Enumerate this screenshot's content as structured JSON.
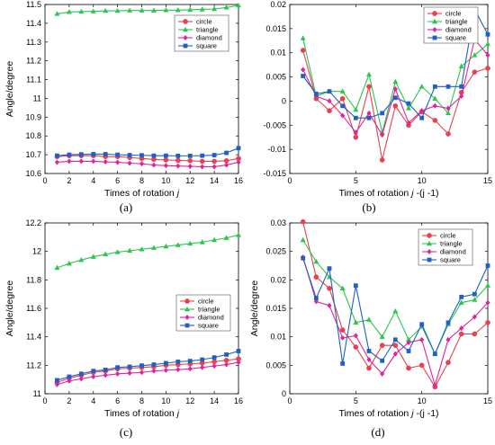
{
  "colors": {
    "circle": "#e8424e",
    "triangle": "#2bc64b",
    "diamond": "#e0249c",
    "square": "#1f5fc6"
  },
  "chart_data": [
    {
      "type": "line",
      "panel_label": "(a)",
      "xlabel_main": "Times of rotation ",
      "xlabel_var": "j",
      "xlabel_tail": "",
      "ylabel": "Angle/degree",
      "xlim": [
        0,
        16
      ],
      "ylim": [
        10.6,
        11.5
      ],
      "xticks": [
        "0",
        "2",
        "4",
        "6",
        "8",
        "10",
        "12",
        "14",
        "16"
      ],
      "yticks": [
        "10.6",
        "10.7",
        "10.8",
        "10.9",
        "11",
        "11.1",
        "11.2",
        "11.3",
        "11.4",
        "11.5"
      ],
      "x": [
        1,
        2,
        3,
        4,
        5,
        6,
        7,
        8,
        9,
        10,
        11,
        12,
        13,
        14,
        15,
        16
      ],
      "series": [
        {
          "name": "circle",
          "marker": "circle",
          "values": [
            10.69,
            10.695,
            10.695,
            10.695,
            10.69,
            10.69,
            10.685,
            10.68,
            10.675,
            10.672,
            10.67,
            10.668,
            10.665,
            10.665,
            10.668,
            10.68
          ]
        },
        {
          "name": "triangle",
          "marker": "triangle",
          "values": [
            11.45,
            11.46,
            11.462,
            11.464,
            11.466,
            11.466,
            11.468,
            11.468,
            11.468,
            11.47,
            11.47,
            11.472,
            11.474,
            11.476,
            11.484,
            11.495
          ]
        },
        {
          "name": "diamond",
          "marker": "diamond",
          "values": [
            10.66,
            10.665,
            10.665,
            10.665,
            10.662,
            10.66,
            10.655,
            10.652,
            10.645,
            10.642,
            10.64,
            10.638,
            10.636,
            10.636,
            10.645,
            10.66
          ]
        },
        {
          "name": "square",
          "marker": "square",
          "values": [
            10.695,
            10.7,
            10.702,
            10.703,
            10.703,
            10.7,
            10.698,
            10.697,
            10.695,
            10.695,
            10.694,
            10.694,
            10.695,
            10.698,
            10.71,
            10.735
          ]
        }
      ],
      "legend": "top-right"
    },
    {
      "type": "line",
      "panel_label": "(b)",
      "xlabel_main": "Times of rotation ",
      "xlabel_var": "j",
      "xlabel_tail": " -(j -1)",
      "ylabel": "",
      "xlim": [
        0,
        15
      ],
      "ylim": [
        -0.015,
        0.02
      ],
      "xticks": [
        "0",
        "5",
        "10",
        "15"
      ],
      "yticks": [
        "-0.015",
        "-0.01",
        "-0.005",
        "0",
        "0.005",
        "0.01",
        "0.015",
        "0.02"
      ],
      "x": [
        1,
        2,
        3,
        4,
        5,
        6,
        7,
        8,
        9,
        10,
        11,
        12,
        13,
        14,
        15
      ],
      "series": [
        {
          "name": "circle",
          "marker": "circle",
          "values": [
            0.0105,
            0.0005,
            -0.002,
            0.0005,
            -0.0075,
            0.003,
            -0.0122,
            -0.001,
            -0.005,
            -0.0022,
            -0.004,
            -0.0068,
            0.0018,
            0.006,
            0.0068
          ]
        },
        {
          "name": "triangle",
          "marker": "triangle",
          "values": [
            0.013,
            0.001,
            0.002,
            0.002,
            -0.0018,
            0.0055,
            -0.0065,
            0.004,
            -0.0015,
            0.003,
            0.0005,
            -0.0025,
            0.0072,
            0.0095,
            0.0118
          ]
        },
        {
          "name": "diamond",
          "marker": "diamond",
          "values": [
            0.0065,
            0.001,
            0.0,
            -0.003,
            -0.0065,
            -0.0025,
            -0.007,
            0.0025,
            -0.0045,
            -0.002,
            -0.001,
            -0.0015,
            0.001,
            0.0128,
            0.0095
          ]
        },
        {
          "name": "square",
          "marker": "square",
          "values": [
            0.0052,
            0.0015,
            0.002,
            -0.001,
            -0.0035,
            -0.0035,
            -0.0025,
            0.0007,
            -0.0005,
            -0.0035,
            0.003,
            0.003,
            0.003,
            0.019,
            0.0138
          ]
        }
      ],
      "legend": "top-right"
    },
    {
      "type": "line",
      "panel_label": "(c)",
      "xlabel_main": "Times of rotation ",
      "xlabel_var": "j",
      "xlabel_tail": "",
      "ylabel": "Angle/degree",
      "xlim": [
        0,
        16
      ],
      "ylim": [
        11,
        12.2
      ],
      "xticks": [
        "0",
        "2",
        "4",
        "6",
        "8",
        "10",
        "12",
        "14",
        "16"
      ],
      "yticks": [
        "11",
        "11.2",
        "11.4",
        "11.6",
        "11.8",
        "12",
        "12.2"
      ],
      "x": [
        1,
        2,
        3,
        4,
        5,
        6,
        7,
        8,
        9,
        10,
        11,
        12,
        13,
        14,
        15,
        16
      ],
      "series": [
        {
          "name": "circle",
          "marker": "circle",
          "values": [
            11.08,
            11.11,
            11.13,
            11.15,
            11.16,
            11.175,
            11.18,
            11.185,
            11.19,
            11.2,
            11.205,
            11.21,
            11.215,
            11.225,
            11.235,
            11.245
          ]
        },
        {
          "name": "triangle",
          "marker": "triangle",
          "values": [
            11.885,
            11.915,
            11.94,
            11.962,
            11.98,
            11.995,
            12.005,
            12.015,
            12.025,
            12.035,
            12.045,
            12.055,
            12.065,
            12.08,
            12.095,
            12.115
          ]
        },
        {
          "name": "diamond",
          "marker": "diamond",
          "values": [
            11.065,
            11.09,
            11.105,
            11.12,
            11.13,
            11.14,
            11.145,
            11.15,
            11.16,
            11.165,
            11.17,
            11.175,
            11.185,
            11.195,
            11.205,
            11.22
          ]
        },
        {
          "name": "square",
          "marker": "square",
          "values": [
            11.095,
            11.12,
            11.14,
            11.16,
            11.168,
            11.185,
            11.19,
            11.198,
            11.205,
            11.215,
            11.225,
            11.23,
            11.24,
            11.255,
            11.275,
            11.3
          ]
        }
      ],
      "legend": "right"
    },
    {
      "type": "line",
      "panel_label": "(d)",
      "xlabel_main": "Times of rotation ",
      "xlabel_var": "j",
      "xlabel_tail": " -(j -1)",
      "ylabel": "Angle/degree",
      "xlim": [
        0,
        15
      ],
      "ylim": [
        0,
        0.03
      ],
      "xticks": [
        "0",
        "5",
        "10",
        "15"
      ],
      "yticks": [
        "0",
        "0.005",
        "0.01",
        "0.015",
        "0.02",
        "0.025",
        "0.03"
      ],
      "x": [
        1,
        2,
        3,
        4,
        5,
        6,
        7,
        8,
        9,
        10,
        11,
        12,
        13,
        14,
        15
      ],
      "series": [
        {
          "name": "circle",
          "marker": "circle",
          "values": [
            0.0302,
            0.0205,
            0.0185,
            0.0112,
            0.0082,
            0.0045,
            0.0085,
            0.0085,
            0.0045,
            0.005,
            0.0012,
            0.0055,
            0.0105,
            0.0105,
            0.0125
          ]
        },
        {
          "name": "triangle",
          "marker": "triangle",
          "values": [
            0.027,
            0.0232,
            0.0205,
            0.0185,
            0.0125,
            0.013,
            0.01,
            0.0145,
            0.0095,
            0.0118,
            0.007,
            0.0122,
            0.016,
            0.0165,
            0.019
          ]
        },
        {
          "name": "diamond",
          "marker": "diamond",
          "values": [
            0.024,
            0.0162,
            0.0155,
            0.0098,
            0.0102,
            0.006,
            0.0035,
            0.007,
            0.009,
            0.0095,
            0.0015,
            0.0095,
            0.0115,
            0.0135,
            0.016
          ]
        },
        {
          "name": "square",
          "marker": "square",
          "values": [
            0.0238,
            0.0168,
            0.022,
            0.0053,
            0.019,
            0.0075,
            0.0058,
            0.0095,
            0.0075,
            0.0122,
            0.007,
            0.0125,
            0.017,
            0.0175,
            0.0225
          ]
        }
      ],
      "legend": "top-right"
    }
  ]
}
